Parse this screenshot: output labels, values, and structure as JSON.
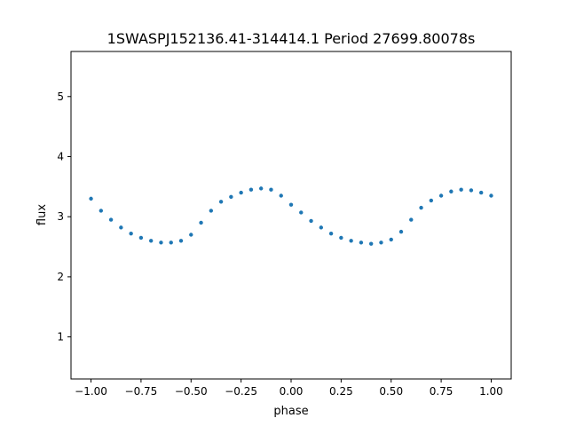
{
  "chart_data": {
    "type": "scatter",
    "title": "1SWASPJ152136.41-314414.1 Period 27699.80078s",
    "xlabel": "phase",
    "ylabel": "flux",
    "xlim": [
      -1.1,
      1.1
    ],
    "ylim": [
      0.3,
      5.75
    ],
    "xticks": [
      {
        "value": -1.0,
        "label": "−1.00"
      },
      {
        "value": -0.75,
        "label": "−0.75"
      },
      {
        "value": -0.5,
        "label": "−0.50"
      },
      {
        "value": -0.25,
        "label": "−0.25"
      },
      {
        "value": 0.0,
        "label": "0.00"
      },
      {
        "value": 0.25,
        "label": "0.25"
      },
      {
        "value": 0.5,
        "label": "0.50"
      },
      {
        "value": 0.75,
        "label": "0.75"
      },
      {
        "value": 1.0,
        "label": "1.00"
      }
    ],
    "yticks": [
      {
        "value": 1,
        "label": "1"
      },
      {
        "value": 2,
        "label": "2"
      },
      {
        "value": 3,
        "label": "3"
      },
      {
        "value": 4,
        "label": "4"
      },
      {
        "value": 5,
        "label": "5"
      }
    ],
    "grid": false,
    "legend": "none",
    "marker_color": "#1f77b4",
    "series": [
      {
        "description_of_trend": "phase-folded light curve, two cycles over phase -1 to 1",
        "x": [
          -1.0,
          -0.95,
          -0.9,
          -0.85,
          -0.8,
          -0.75,
          -0.7,
          -0.65,
          -0.6,
          -0.55,
          -0.5,
          -0.45,
          -0.4,
          -0.35,
          -0.3,
          -0.25,
          -0.2,
          -0.15,
          -0.1,
          -0.05,
          0.0,
          0.05,
          0.1,
          0.15,
          0.2,
          0.25,
          0.3,
          0.35,
          0.4,
          0.45,
          0.5,
          0.55,
          0.6,
          0.65,
          0.7,
          0.75,
          0.8,
          0.85,
          0.9,
          0.95,
          1.0
        ],
        "y": [
          3.3,
          3.1,
          2.95,
          2.82,
          2.72,
          2.65,
          2.6,
          2.57,
          2.57,
          2.6,
          2.7,
          2.9,
          3.1,
          3.25,
          3.33,
          3.4,
          3.45,
          3.47,
          3.45,
          3.35,
          3.2,
          3.07,
          2.93,
          2.82,
          2.72,
          2.65,
          2.6,
          2.57,
          2.55,
          2.57,
          2.62,
          2.75,
          2.95,
          3.15,
          3.27,
          3.35,
          3.42,
          3.45,
          3.44,
          3.4,
          3.35
        ]
      }
    ]
  }
}
